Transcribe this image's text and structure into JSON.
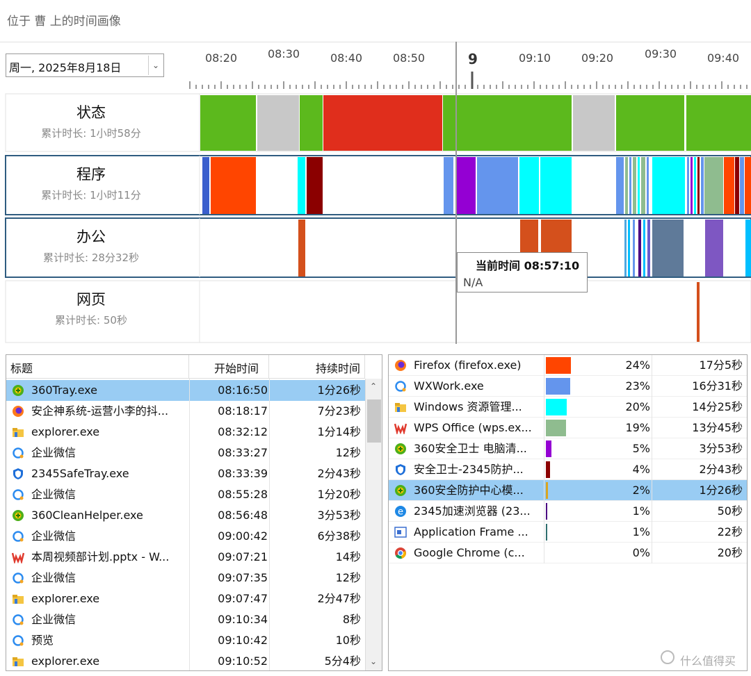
{
  "header": {
    "title": "位于 曹 上的时间画像"
  },
  "date_picker": {
    "value": "周一, 2025年8月18日"
  },
  "timeline": {
    "labels": [
      "08:20",
      "08:30",
      "08:40",
      "08:50",
      "9",
      "09:10",
      "09:20",
      "09:30",
      "09:40"
    ]
  },
  "rows": [
    {
      "name": "状态",
      "total": "累计时长: 1小时58分"
    },
    {
      "name": "程序",
      "total": "累计时长: 1小时11分"
    },
    {
      "name": "办公",
      "total": "累计时长: 28分32秒"
    },
    {
      "name": "网页",
      "total": "累计时长: 50秒"
    }
  ],
  "tooltip": {
    "title": "当前时间 08:57:10",
    "text": "N/A"
  },
  "table_left": {
    "columns": [
      "标题",
      "开始时间",
      "持续时间"
    ],
    "rows": [
      [
        "360Tray.exe",
        "08:16:50",
        "1分26秒"
      ],
      [
        "安企神系统-运营小李的抖...",
        "08:18:17",
        "7分23秒"
      ],
      [
        "explorer.exe",
        "08:32:12",
        "1分14秒"
      ],
      [
        "企业微信",
        "08:33:27",
        "12秒"
      ],
      [
        "2345SafeTray.exe",
        "08:33:39",
        "2分43秒"
      ],
      [
        "企业微信",
        "08:55:28",
        "1分20秒"
      ],
      [
        "360CleanHelper.exe",
        "08:56:48",
        "3分53秒"
      ],
      [
        "企业微信",
        "09:00:42",
        "6分38秒"
      ],
      [
        "本周视频部计划.pptx - W...",
        "09:07:21",
        "14秒"
      ],
      [
        "企业微信",
        "09:07:35",
        "12秒"
      ],
      [
        "explorer.exe",
        "09:07:47",
        "2分47秒"
      ],
      [
        "企业微信",
        "09:10:34",
        "8秒"
      ],
      [
        "预览",
        "09:10:42",
        "10秒"
      ],
      [
        "explorer.exe",
        "09:10:52",
        "5分4秒"
      ]
    ]
  },
  "table_right": {
    "rows": [
      {
        "name": "Firefox (firefox.exe)",
        "percent": 24,
        "percent_label": "24%",
        "duration": "17分5秒"
      },
      {
        "name": "WXWork.exe",
        "percent": 23,
        "percent_label": "23%",
        "duration": "16分31秒"
      },
      {
        "name": "Windows 资源管理...",
        "percent": 20,
        "percent_label": "20%",
        "duration": "14分25秒"
      },
      {
        "name": "WPS Office (wps.ex...",
        "percent": 19,
        "percent_label": "19%",
        "duration": "13分45秒"
      },
      {
        "name": "360安全卫士 电脑清...",
        "percent": 5,
        "percent_label": "5%",
        "duration": "3分53秒"
      },
      {
        "name": "安全卫士-2345防护...",
        "percent": 4,
        "percent_label": "4%",
        "duration": "2分43秒"
      },
      {
        "name": "360安全防护中心模...",
        "percent": 2,
        "percent_label": "2%",
        "duration": "1分26秒"
      },
      {
        "name": "2345加速浏览器 (23...",
        "percent": 1,
        "percent_label": "1%",
        "duration": "50秒"
      },
      {
        "name": "Application Frame ...",
        "percent": 1,
        "percent_label": "1%",
        "duration": "22秒"
      },
      {
        "name": "Google Chrome (c...",
        "percent": 0,
        "percent_label": "0%",
        "duration": "20秒"
      }
    ]
  },
  "watermark": "什么值得买"
}
